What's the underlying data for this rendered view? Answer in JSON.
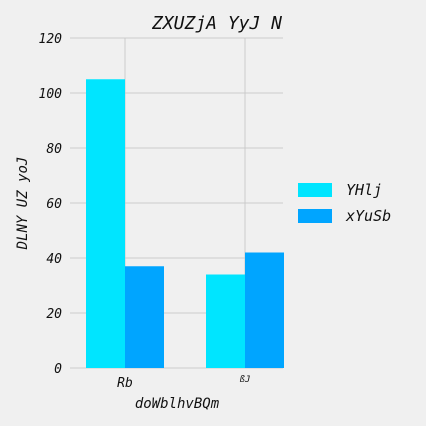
{
  "chart_data": {
    "type": "bar",
    "title": "ZXUZjA YyJ N",
    "xlabel": "doWblhvBQm",
    "ylabel": "DLNY UZ  yoJ",
    "categories": [
      "Rb",
      "ßJ"
    ],
    "series": [
      {
        "name": "YHlj",
        "values": [
          105,
          34
        ],
        "color": "#00e5ff"
      },
      {
        "name": "xYuSb",
        "values": [
          37,
          42
        ],
        "color": "#00a5ff"
      }
    ],
    "ylim": [
      0,
      120
    ],
    "yticks": [
      0,
      20,
      40,
      60,
      80,
      100,
      120
    ],
    "grid": true,
    "legend_position": "right"
  }
}
